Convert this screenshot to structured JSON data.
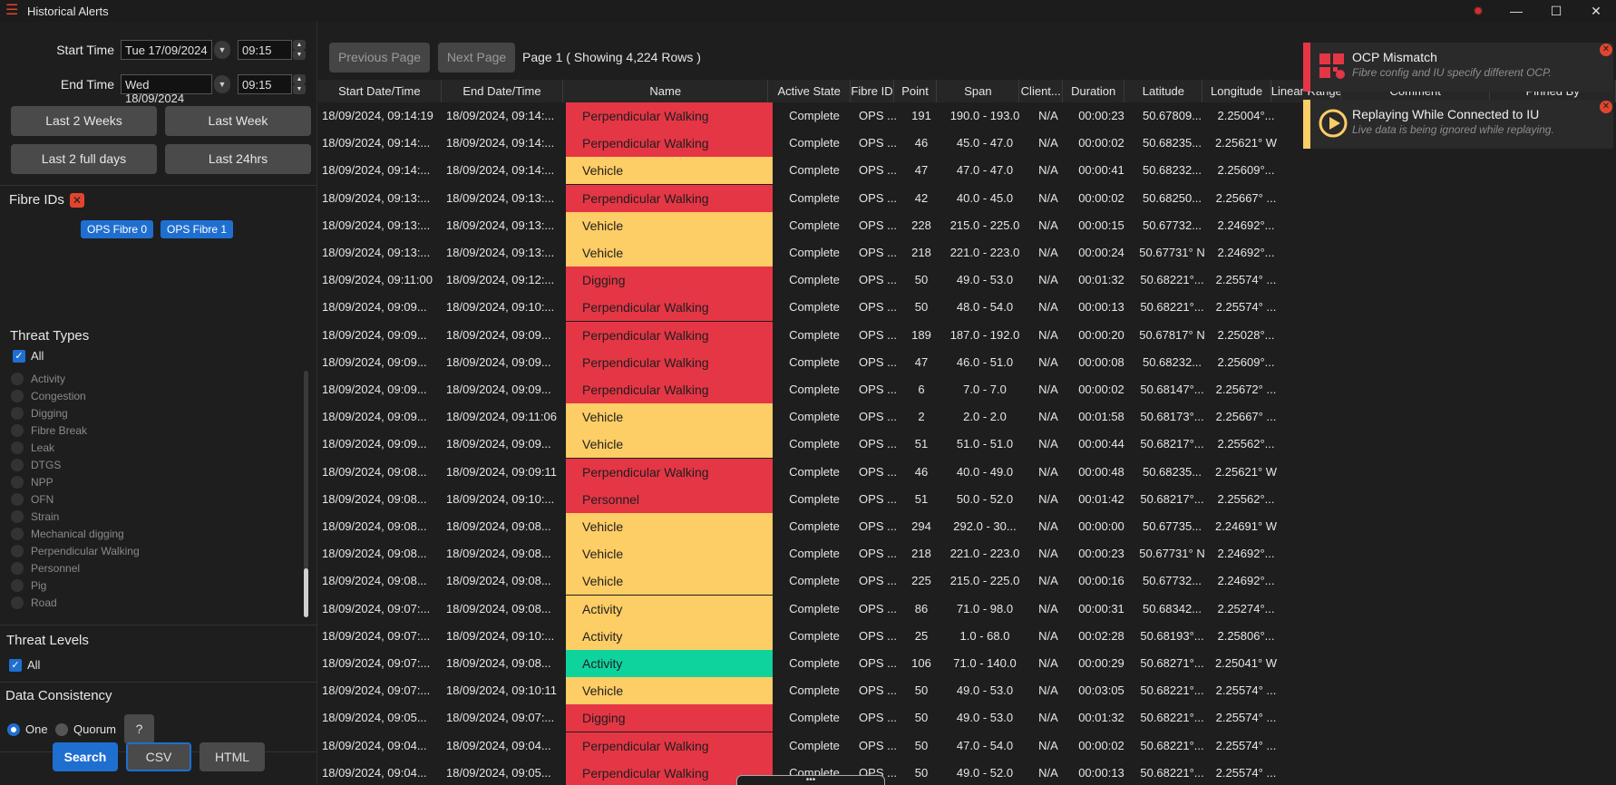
{
  "window": {
    "title": "Historical Alerts"
  },
  "filters": {
    "start_label": "Start Time",
    "start_date": "Tue 17/09/2024",
    "start_time": "09:15",
    "end_label": "End Time",
    "end_date": "Wed 18/09/2024",
    "end_time": "09:15",
    "quick": [
      "Last 2 Weeks",
      "Last Week",
      "Last 2 full days",
      "Last 24hrs"
    ],
    "fibre_ids_title": "Fibre IDs",
    "fibre_chips": [
      "OPS Fibre 0",
      "OPS Fibre 1"
    ],
    "threat_types_title": "Threat Types",
    "threat_all": "All",
    "threat_types": [
      "Activity",
      "Congestion",
      "Digging",
      "Fibre Break",
      "Leak",
      "DTGS",
      "NPP",
      "OFN",
      "Strain",
      "Mechanical digging",
      "Perpendicular Walking",
      "Personnel",
      "Pig",
      "Road"
    ],
    "threat_levels_title": "Threat Levels",
    "threat_levels_all": "All",
    "consistency_title": "Data Consistency",
    "consistency_one": "One",
    "consistency_quorum": "Quorum",
    "help": "?"
  },
  "actions": {
    "search": "Search",
    "csv": "CSV",
    "html": "HTML"
  },
  "pager": {
    "prev": "Previous Page",
    "next": "Next Page",
    "info": "Page 1 ( Showing 4,224 Rows )"
  },
  "table": {
    "columns": [
      "Start Date/Time",
      "End Date/Time",
      "Name",
      "Active State",
      "Fibre ID",
      "Point",
      "Span",
      "Client...",
      "Duration",
      "Latitude",
      "Longitude",
      "Linear Range",
      "Comment",
      "Pinned By"
    ],
    "rows": [
      [
        "18/09/2024, 09:14:19",
        "18/09/2024, 09:14:...",
        "Perpendicular Walking",
        "Complete",
        "OPS ...",
        "191",
        "190.0 - 193.0",
        "N/A",
        "00:00:23",
        "50.67809...",
        "2.25004°...",
        "red"
      ],
      [
        "18/09/2024, 09:14:...",
        "18/09/2024, 09:14:...",
        "Perpendicular Walking",
        "Complete",
        "OPS ...",
        "46",
        "45.0 - 47.0",
        "N/A",
        "00:00:02",
        "50.68235...",
        "2.25621° W",
        "red"
      ],
      [
        "18/09/2024, 09:14:...",
        "18/09/2024, 09:14:...",
        "Vehicle",
        "Complete",
        "OPS ...",
        "47",
        "47.0 - 47.0",
        "N/A",
        "00:00:41",
        "50.68232...",
        "2.25609°...",
        "yellow"
      ],
      [
        "18/09/2024, 09:13:...",
        "18/09/2024, 09:13:...",
        "Perpendicular Walking",
        "Complete",
        "OPS ...",
        "42",
        "40.0 - 45.0",
        "N/A",
        "00:00:02",
        "50.68250...",
        "2.25667° ...",
        "red"
      ],
      [
        "18/09/2024, 09:13:...",
        "18/09/2024, 09:13:...",
        "Vehicle",
        "Complete",
        "OPS ...",
        "228",
        "215.0 - 225.0",
        "N/A",
        "00:00:15",
        "50.67732...",
        "2.24692°...",
        "yellow"
      ],
      [
        "18/09/2024, 09:13:...",
        "18/09/2024, 09:13:...",
        "Vehicle",
        "Complete",
        "OPS ...",
        "218",
        "221.0 - 223.0",
        "N/A",
        "00:00:24",
        "50.67731° N",
        "2.24692°...",
        "yellow"
      ],
      [
        "18/09/2024, 09:11:00",
        "18/09/2024, 09:12:...",
        "Digging",
        "Complete",
        "OPS ...",
        "50",
        "49.0 - 53.0",
        "N/A",
        "00:01:32",
        "50.68221°...",
        "2.25574° ...",
        "red"
      ],
      [
        "18/09/2024, 09:09...",
        "18/09/2024, 09:10:...",
        "Perpendicular Walking",
        "Complete",
        "OPS ...",
        "50",
        "48.0 - 54.0",
        "N/A",
        "00:00:13",
        "50.68221°...",
        "2.25574° ...",
        "red"
      ],
      [
        "18/09/2024, 09:09...",
        "18/09/2024, 09:09...",
        "Perpendicular Walking",
        "Complete",
        "OPS ...",
        "189",
        "187.0 - 192.0",
        "N/A",
        "00:00:20",
        "50.67817° N",
        "2.25028°...",
        "red"
      ],
      [
        "18/09/2024, 09:09...",
        "18/09/2024, 09:09...",
        "Perpendicular Walking",
        "Complete",
        "OPS ...",
        "47",
        "46.0 - 51.0",
        "N/A",
        "00:00:08",
        "50.68232...",
        "2.25609°...",
        "red"
      ],
      [
        "18/09/2024, 09:09...",
        "18/09/2024, 09:09...",
        "Perpendicular Walking",
        "Complete",
        "OPS ...",
        "6",
        "7.0 - 7.0",
        "N/A",
        "00:00:02",
        "50.68147°...",
        "2.25672° ...",
        "red"
      ],
      [
        "18/09/2024, 09:09...",
        "18/09/2024, 09:11:06",
        "Vehicle",
        "Complete",
        "OPS ...",
        "2",
        "2.0 - 2.0",
        "N/A",
        "00:01:58",
        "50.68173°...",
        "2.25667° ...",
        "yellow"
      ],
      [
        "18/09/2024, 09:09...",
        "18/09/2024, 09:09...",
        "Vehicle",
        "Complete",
        "OPS ...",
        "51",
        "51.0 - 51.0",
        "N/A",
        "00:00:44",
        "50.68217°...",
        "2.25562°...",
        "yellow"
      ],
      [
        "18/09/2024, 09:08...",
        "18/09/2024, 09:09:11",
        "Perpendicular Walking",
        "Complete",
        "OPS ...",
        "46",
        "40.0 - 49.0",
        "N/A",
        "00:00:48",
        "50.68235...",
        "2.25621° W",
        "red"
      ],
      [
        "18/09/2024, 09:08...",
        "18/09/2024, 09:10:...",
        "Personnel",
        "Complete",
        "OPS ...",
        "51",
        "50.0 - 52.0",
        "N/A",
        "00:01:42",
        "50.68217°...",
        "2.25562°...",
        "red"
      ],
      [
        "18/09/2024, 09:08...",
        "18/09/2024, 09:08...",
        "Vehicle",
        "Complete",
        "OPS ...",
        "294",
        "292.0 - 30...",
        "N/A",
        "00:00:00",
        "50.67735...",
        "2.24691° W",
        "yellow"
      ],
      [
        "18/09/2024, 09:08...",
        "18/09/2024, 09:08...",
        "Vehicle",
        "Complete",
        "OPS ...",
        "218",
        "221.0 - 223.0",
        "N/A",
        "00:00:23",
        "50.67731° N",
        "2.24692°...",
        "yellow"
      ],
      [
        "18/09/2024, 09:08...",
        "18/09/2024, 09:08...",
        "Vehicle",
        "Complete",
        "OPS ...",
        "225",
        "215.0 - 225.0",
        "N/A",
        "00:00:16",
        "50.67732...",
        "2.24692°...",
        "yellow"
      ],
      [
        "18/09/2024, 09:07:...",
        "18/09/2024, 09:08...",
        "Activity",
        "Complete",
        "OPS ...",
        "86",
        "71.0 - 98.0",
        "N/A",
        "00:00:31",
        "50.68342...",
        "2.25274°...",
        "yellow"
      ],
      [
        "18/09/2024, 09:07:...",
        "18/09/2024, 09:10:...",
        "Activity",
        "Complete",
        "OPS ...",
        "25",
        "1.0 - 68.0",
        "N/A",
        "00:02:28",
        "50.68193°...",
        "2.25806°...",
        "yellow"
      ],
      [
        "18/09/2024, 09:07:...",
        "18/09/2024, 09:08...",
        "Activity",
        "Complete",
        "OPS ...",
        "106",
        "71.0 - 140.0",
        "N/A",
        "00:00:29",
        "50.68271°...",
        "2.25041° W",
        "green"
      ],
      [
        "18/09/2024, 09:07:...",
        "18/09/2024, 09:10:11",
        "Vehicle",
        "Complete",
        "OPS ...",
        "50",
        "49.0 - 53.0",
        "N/A",
        "00:03:05",
        "50.68221°...",
        "2.25574° ...",
        "yellow"
      ],
      [
        "18/09/2024, 09:05...",
        "18/09/2024, 09:07:...",
        "Digging",
        "Complete",
        "OPS ...",
        "50",
        "49.0 - 53.0",
        "N/A",
        "00:01:32",
        "50.68221°...",
        "2.25574° ...",
        "red"
      ],
      [
        "18/09/2024, 09:04...",
        "18/09/2024, 09:04...",
        "Perpendicular Walking",
        "Complete",
        "OPS ...",
        "50",
        "47.0 - 54.0",
        "N/A",
        "00:00:02",
        "50.68221°...",
        "2.25574° ...",
        "red"
      ],
      [
        "18/09/2024, 09:04...",
        "18/09/2024, 09:05...",
        "Perpendicular Walking",
        "Complete",
        "OPS ...",
        "50",
        "49.0 - 52.0",
        "N/A",
        "00:00:13",
        "50.68221°...",
        "2.25574° ...",
        "red"
      ]
    ]
  },
  "colors": {
    "red": "#e53645",
    "yellow": "#fdcd66",
    "green": "#0fd39d",
    "accent": "#1f6fd1"
  },
  "notifications": [
    {
      "title": "OCP Mismatch",
      "body": "Fibre config and IU specify different OCP.",
      "color": "#e53645",
      "icon": "grid-warning-icon"
    },
    {
      "title": "Replaying While Connected to IU",
      "body": "Live data is being ignored while replaying.",
      "color": "#fdcd66",
      "icon": "play-icon"
    }
  ]
}
